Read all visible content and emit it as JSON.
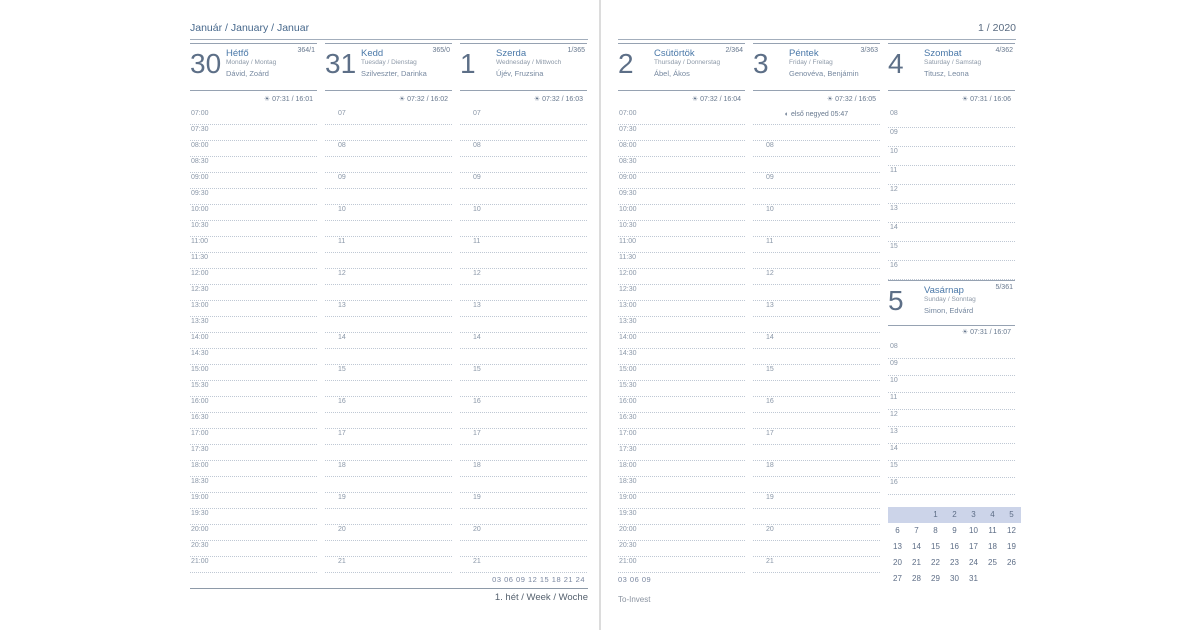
{
  "meta": {
    "left_title": "Január / January / Januar",
    "right_title": "1 / 2020",
    "week_label": "1. hét / Week / Woche",
    "brand": "To-Invest",
    "ruler_left": "03 06 09 12 15 18 21 24",
    "ruler_right": "03 06 09"
  },
  "colors": {
    "accent_blue": "#4a78a8",
    "steel_gray": "#5d6f87",
    "grid_dot": "#bfc8d4",
    "calendar_highlight": "#ccd4e9"
  },
  "icons": {
    "sunrise_sunset": "☀",
    "moon_first_quarter": "◐"
  },
  "days": [
    {
      "key": "monday",
      "number": "30",
      "ordinal": "364/1",
      "name_hu": "Hétfő",
      "name_intl": "Monday / Montag",
      "namedays": "Dávid, Zoárd",
      "sun_times": "07:31 / 16:01"
    },
    {
      "key": "tuesday",
      "number": "31",
      "ordinal": "365/0",
      "name_hu": "Kedd",
      "name_intl": "Tuesday / Dienstag",
      "namedays": "Szilveszter, Darinka",
      "sun_times": "07:32 / 16:02"
    },
    {
      "key": "wednesday",
      "number": "1",
      "ordinal": "1/365",
      "name_hu": "Szerda",
      "name_intl": "Wednesday / Mittwoch",
      "namedays": "Újév, Fruzsina",
      "sun_times": "07:32 / 16:03"
    },
    {
      "key": "thursday",
      "number": "2",
      "ordinal": "2/364",
      "name_hu": "Csütörtök",
      "name_intl": "Thursday / Donnerstag",
      "namedays": "Ábel, Ákos",
      "sun_times": "07:32 / 16:04"
    },
    {
      "key": "friday",
      "number": "3",
      "ordinal": "3/363",
      "name_hu": "Péntek",
      "name_intl": "Friday / Freitag",
      "namedays": "Genovéva, Benjámin",
      "sun_times": "07:32 / 16:05",
      "moon": "első negyed 05:47"
    },
    {
      "key": "saturday",
      "number": "4",
      "ordinal": "4/362",
      "name_hu": "Szombat",
      "name_intl": "Saturday / Samstag",
      "namedays": "Titusz, Leona",
      "sun_times": "07:31 / 16:06"
    },
    {
      "key": "sunday",
      "number": "5",
      "ordinal": "5/361",
      "name_hu": "Vasárnap",
      "name_intl": "Sunday / Sonntag",
      "namedays": "Simon, Edvárd",
      "sun_times": "07:31 / 16:07"
    }
  ],
  "timeline": {
    "half_hours": [
      "07:00",
      "07:30",
      "08:00",
      "08:30",
      "09:00",
      "09:30",
      "10:00",
      "10:30",
      "11:00",
      "11:30",
      "12:00",
      "12:30",
      "13:00",
      "13:30",
      "14:00",
      "14:30",
      "15:00",
      "15:30",
      "16:00",
      "16:30",
      "17:00",
      "17:30",
      "18:00",
      "18:30",
      "19:00",
      "19:30",
      "20:00",
      "20:30",
      "21:00"
    ],
    "hours": [
      "07",
      "08",
      "09",
      "10",
      "11",
      "12",
      "13",
      "14",
      "15",
      "16",
      "17",
      "18",
      "19",
      "20",
      "21"
    ],
    "weekend_hours": [
      "08",
      "09",
      "10",
      "11",
      "12",
      "13",
      "14",
      "15",
      "16"
    ]
  },
  "mini_calendar": {
    "highlighted_row": 0,
    "weeks": [
      [
        "",
        "",
        "1",
        "2",
        "3",
        "4",
        "5"
      ],
      [
        "6",
        "7",
        "8",
        "9",
        "10",
        "11",
        "12"
      ],
      [
        "13",
        "14",
        "15",
        "16",
        "17",
        "18",
        "19"
      ],
      [
        "20",
        "21",
        "22",
        "23",
        "24",
        "25",
        "26"
      ],
      [
        "27",
        "28",
        "29",
        "30",
        "31",
        "",
        ""
      ]
    ]
  }
}
